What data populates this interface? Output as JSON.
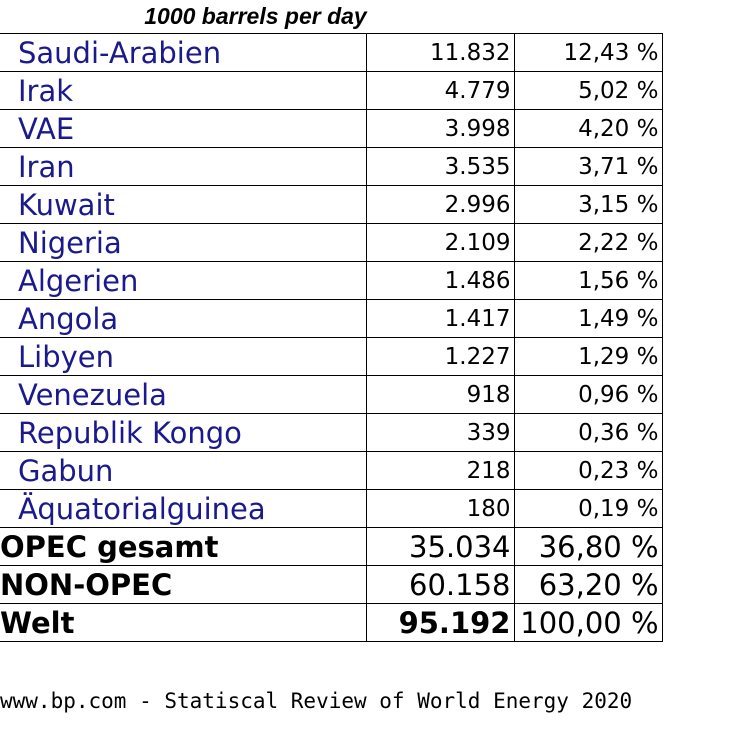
{
  "chart_data": {
    "type": "table",
    "header": "1000 barrels per day",
    "rows": [
      {
        "country": "Saudi-Arabien",
        "value": "11.832",
        "share": "12,43 %"
      },
      {
        "country": "Irak",
        "value": "4.779",
        "share": "5,02 %"
      },
      {
        "country": "VAE",
        "value": "3.998",
        "share": "4,20 %"
      },
      {
        "country": "Iran",
        "value": "3.535",
        "share": "3,71 %"
      },
      {
        "country": "Kuwait",
        "value": "2.996",
        "share": "3,15 %"
      },
      {
        "country": "Nigeria",
        "value": "2.109",
        "share": "2,22 %"
      },
      {
        "country": "Algerien",
        "value": "1.486",
        "share": "1,56 %"
      },
      {
        "country": "Angola",
        "value": "1.417",
        "share": "1,49 %"
      },
      {
        "country": "Libyen",
        "value": "1.227",
        "share": "1,29 %"
      },
      {
        "country": "Venezuela",
        "value": "918",
        "share": "0,96 %"
      },
      {
        "country": "Republik Kongo",
        "value": "339",
        "share": "0,36 %"
      },
      {
        "country": "Gabun",
        "value": "218",
        "share": "0,23 %"
      },
      {
        "country": "Äquatorialguinea",
        "value": "180",
        "share": "0,19 %"
      }
    ],
    "totals": [
      {
        "label": "OPEC gesamt",
        "value": "35.034",
        "share": "36,80 %"
      },
      {
        "label": "NON-OPEC",
        "value": "60.158",
        "share": "63,20 %"
      },
      {
        "label": "Welt",
        "value": "95.192",
        "share": "100,00 %"
      }
    ],
    "source": "www.bp.com - Statiscal Review of World Energy 2020",
    "colors": {
      "country_text": "#1a1a8c",
      "total_text": "#000000"
    }
  }
}
